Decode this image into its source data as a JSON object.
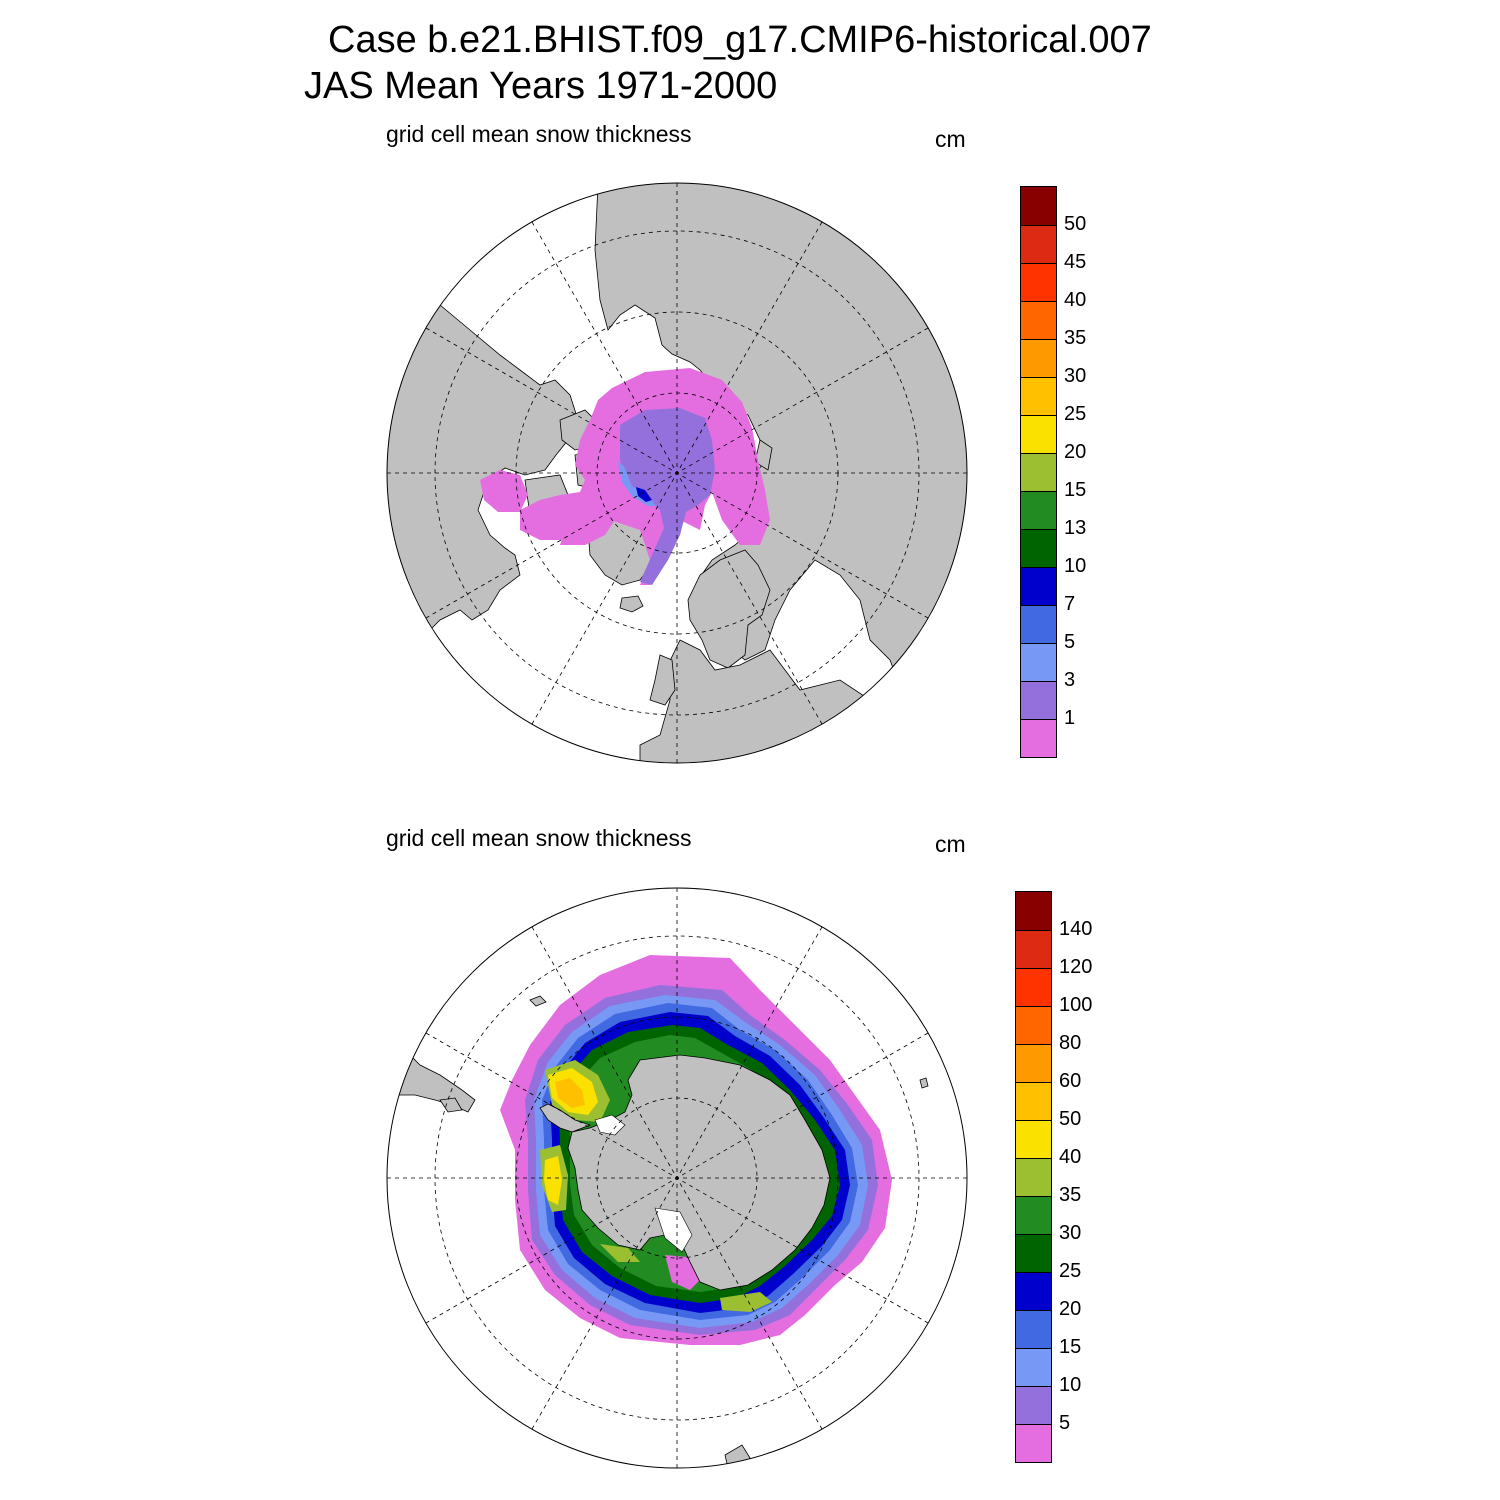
{
  "title": {
    "line1": "Case b.e21.BHIST.f09_g17.CMIP6-historical.007",
    "line2": "JAS Mean   Years 1971-2000"
  },
  "panels": [
    {
      "id": "north",
      "subtitle": "grid cell mean snow thickness",
      "unit": "cm",
      "colorbar": {
        "colors": [
          "#880000",
          "#dd2a12",
          "#ff3300",
          "#ff6600",
          "#ff9900",
          "#ffc000",
          "#fbe100",
          "#9bbf30",
          "#228b22",
          "#006400",
          "#0000cd",
          "#4169e1",
          "#7799f5",
          "#9370db",
          "#e46ee0"
        ],
        "labels": [
          "50",
          "45",
          "40",
          "35",
          "30",
          "25",
          "20",
          "15",
          "13",
          "10",
          "7",
          "5",
          "3",
          "1"
        ]
      }
    },
    {
      "id": "south",
      "subtitle": "grid cell mean snow thickness",
      "unit": "cm",
      "colorbar": {
        "colors": [
          "#880000",
          "#dd2a12",
          "#ff3300",
          "#ff6600",
          "#ff9900",
          "#ffc000",
          "#fbe100",
          "#9bbf30",
          "#228b22",
          "#006400",
          "#0000cd",
          "#4169e1",
          "#7799f5",
          "#9370db",
          "#e46ee0"
        ],
        "labels": [
          "140",
          "120",
          "100",
          "80",
          "60",
          "50",
          "40",
          "35",
          "30",
          "25",
          "20",
          "15",
          "10",
          "5"
        ]
      }
    }
  ],
  "colors": {
    "land": "#c0c0c0",
    "ocean": "#ffffff"
  }
}
